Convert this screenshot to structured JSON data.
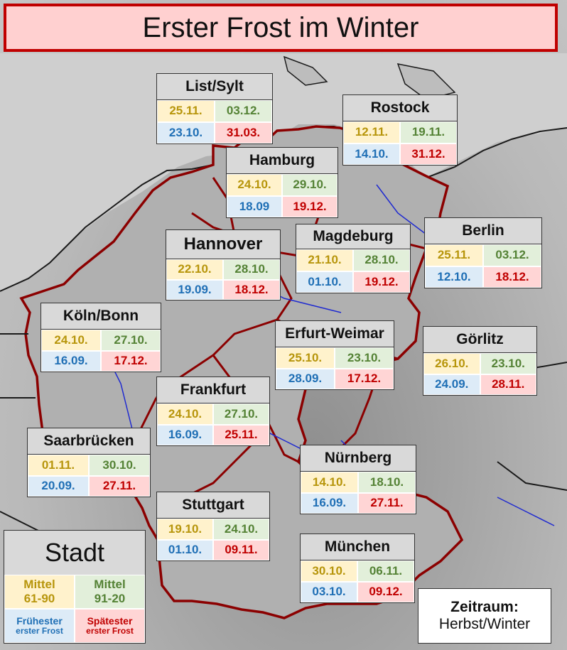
{
  "title": "Erster Frost im Winter",
  "cities": [
    {
      "name": "List/Sylt",
      "mean_6190": "25.11.",
      "mean_9120": "03.12.",
      "earliest": "23.10.",
      "latest": "31.03."
    },
    {
      "name": "Rostock",
      "mean_6190": "12.11.",
      "mean_9120": "19.11.",
      "earliest": "14.10.",
      "latest": "31.12."
    },
    {
      "name": "Hamburg",
      "mean_6190": "24.10.",
      "mean_9120": "29.10.",
      "earliest": "18.09",
      "latest": "19.12."
    },
    {
      "name": "Hannover",
      "mean_6190": "22.10.",
      "mean_9120": "28.10.",
      "earliest": "19.09.",
      "latest": "18.12."
    },
    {
      "name": "Magdeburg",
      "mean_6190": "21.10.",
      "mean_9120": "28.10.",
      "earliest": "01.10.",
      "latest": "19.12."
    },
    {
      "name": "Berlin",
      "mean_6190": "25.11.",
      "mean_9120": "03.12.",
      "earliest": "12.10.",
      "latest": "18.12."
    },
    {
      "name": "Köln/Bonn",
      "mean_6190": "24.10.",
      "mean_9120": "27.10.",
      "earliest": "16.09.",
      "latest": "17.12."
    },
    {
      "name": "Erfurt-Weimar",
      "mean_6190": "25.10.",
      "mean_9120": "23.10.",
      "earliest": "28.09.",
      "latest": "17.12."
    },
    {
      "name": "Görlitz",
      "mean_6190": "26.10.",
      "mean_9120": "23.10.",
      "earliest": "24.09.",
      "latest": "28.11."
    },
    {
      "name": "Frankfurt",
      "mean_6190": "24.10.",
      "mean_9120": "27.10.",
      "earliest": "16.09.",
      "latest": "25.11."
    },
    {
      "name": "Saarbrücken",
      "mean_6190": "01.11.",
      "mean_9120": "30.10.",
      "earliest": "20.09.",
      "latest": "27.11."
    },
    {
      "name": "Nürnberg",
      "mean_6190": "14.10.",
      "mean_9120": "18.10.",
      "earliest": "16.09.",
      "latest": "27.11."
    },
    {
      "name": "Stuttgart",
      "mean_6190": "19.10.",
      "mean_9120": "24.10.",
      "earliest": "01.10.",
      "latest": "09.11."
    },
    {
      "name": "München",
      "mean_6190": "30.10.",
      "mean_9120": "06.11.",
      "earliest": "03.10.",
      "latest": "09.12."
    }
  ],
  "legend": {
    "title": "Stadt",
    "mean_old": "Mittel",
    "mean_old_period": "61-90",
    "mean_new": "Mittel",
    "mean_new_period": "91-20",
    "earliest": "Frühester",
    "earliest_sub": "erster Frost",
    "latest": "Spätester",
    "latest_sub": "erster Frost"
  },
  "period": {
    "label": "Zeitraum:",
    "value": "Herbst/Winter"
  },
  "colors": {
    "mean_old": "#b7950b",
    "mean_new": "#548235",
    "earliest": "#1f6fb5",
    "latest": "#c00000",
    "title_border": "#c00000",
    "title_bg": "#ffd0d0"
  }
}
